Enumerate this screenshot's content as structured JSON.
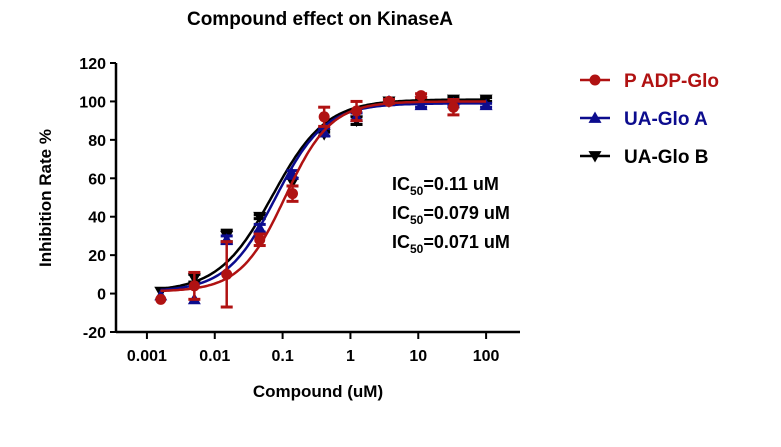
{
  "chart_data": {
    "type": "line",
    "title": "Compound effect on KinaseA",
    "xlabel": "Compound (uM)",
    "ylabel": "Inhibition Rate %",
    "xscale": "log",
    "xlim": [
      0.00035,
      316
    ],
    "ylim": [
      -20,
      120
    ],
    "xticks": [
      0.001,
      0.01,
      0.1,
      1,
      10,
      100
    ],
    "xtick_labels": [
      "0.001",
      "0.01",
      "0.1",
      "1",
      "10",
      "100"
    ],
    "yticks": [
      -20,
      0,
      20,
      40,
      60,
      80,
      100,
      120
    ],
    "ytick_labels": [
      "-20",
      "0",
      "20",
      "40",
      "60",
      "80",
      "100",
      "120"
    ],
    "grid": false,
    "legend": "right",
    "x": [
      0.0016,
      0.005,
      0.015,
      0.046,
      0.14,
      0.41,
      1.23,
      3.7,
      11,
      33,
      100
    ],
    "series": [
      {
        "name": "P ADP-Glo",
        "color": "#b01212",
        "marker": "circle",
        "ic50": 0.11,
        "hill": 1.3,
        "bottom": 1,
        "top": 100,
        "values": [
          -3,
          4,
          10,
          28,
          52,
          92,
          95,
          100,
          103,
          97,
          null
        ],
        "errors": [
          0,
          7,
          17,
          3,
          4,
          5,
          5,
          1,
          1,
          4,
          null
        ]
      },
      {
        "name": "UA-Glo A",
        "color": "#0c0c8e",
        "marker": "triangle-up",
        "ic50": 0.079,
        "hill": 1.2,
        "bottom": 1,
        "top": 99,
        "values": [
          -1,
          -3,
          28,
          34,
          62,
          84,
          92,
          100,
          98,
          99,
          98
        ],
        "errors": [
          0,
          0,
          2,
          2,
          2,
          2,
          2,
          1,
          1,
          1,
          1
        ]
      },
      {
        "name": "UA-Glo B",
        "color": "#000000",
        "marker": "triangle-down",
        "ic50": 0.071,
        "hill": 1.1,
        "bottom": 1,
        "top": 101,
        "values": [
          1,
          8,
          30,
          40,
          58,
          83,
          90,
          100,
          100,
          101,
          101
        ],
        "errors": [
          0,
          2,
          3,
          1,
          2,
          1,
          2,
          1,
          1,
          1,
          1
        ]
      }
    ],
    "annotations": [
      {
        "prefix": "IC",
        "sub": "50",
        "value": "=0.11 uM"
      },
      {
        "prefix": "IC",
        "sub": "50",
        "value": "=0.079 uM"
      },
      {
        "prefix": "IC",
        "sub": "50",
        "value": "=0.071 uM"
      }
    ]
  }
}
